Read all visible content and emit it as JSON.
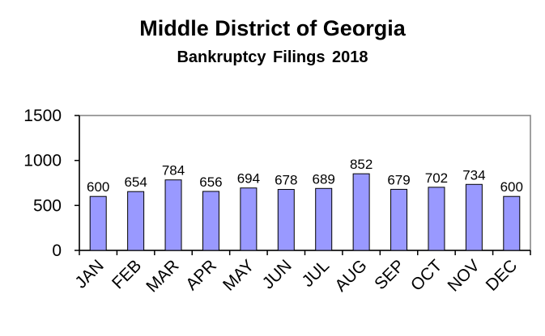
{
  "chart_data": {
    "type": "bar",
    "title": "Middle District of Georgia",
    "subtitle": "Bankruptcy  Filings 2018",
    "xlabel": "",
    "ylabel": "",
    "categories": [
      "JAN",
      "FEB",
      "MAR",
      "APR",
      "MAY",
      "JUN",
      "JUL",
      "AUG",
      "SEP",
      "OCT",
      "NOV",
      "DEC"
    ],
    "values": [
      600,
      654,
      784,
      656,
      694,
      678,
      689,
      852,
      679,
      702,
      734,
      600
    ],
    "data_labels": [
      "600",
      "654",
      "784",
      "656",
      "694",
      "678",
      "689",
      "852",
      "679",
      "702",
      "734",
      "600"
    ],
    "ylim": [
      0,
      1500
    ],
    "yticks": [
      0,
      500,
      1000,
      1500
    ],
    "ytick_labels": [
      "0",
      "500",
      "1000",
      "1500"
    ],
    "grid": false,
    "legend": "none",
    "colors": {
      "bar_fill": "#9999ff",
      "bar_stroke": "#000000",
      "plot_border": "#808080",
      "axis": "#000000"
    }
  }
}
